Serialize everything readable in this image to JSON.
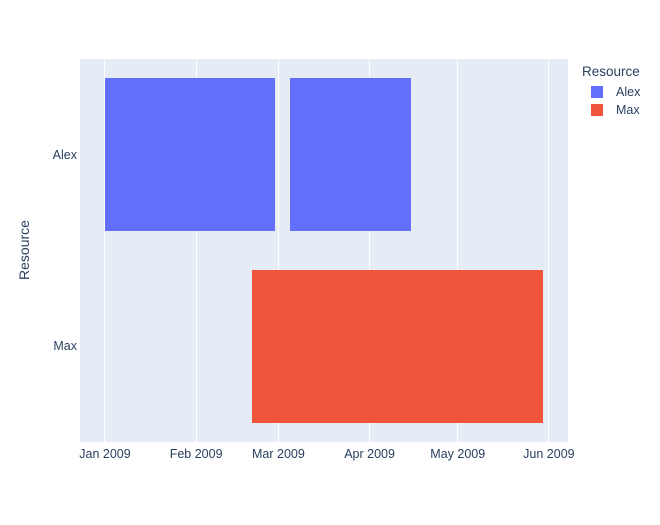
{
  "figure": {
    "paper_color": "#ffffff",
    "plot_background": "#E5ECF6",
    "grid_color": "#ffffff",
    "text_color": "#2a3f5f"
  },
  "chart_data": {
    "type": "gantt",
    "title": "",
    "xlabel": "",
    "ylabel": "Resource",
    "x_axis": {
      "range": [
        "2008-12-23T12:00:00Z",
        "2009-06-07T12:00:00Z"
      ],
      "ticks": [
        {
          "label": "Jan 2009",
          "date": "2009-01-01"
        },
        {
          "label": "Feb 2009",
          "date": "2009-02-01"
        },
        {
          "label": "Mar 2009",
          "date": "2009-03-01"
        },
        {
          "label": "Apr 2009",
          "date": "2009-04-01"
        },
        {
          "label": "May 2009",
          "date": "2009-05-01"
        },
        {
          "label": "Jun 2009",
          "date": "2009-06-01"
        }
      ],
      "grid": true
    },
    "y_axis": {
      "categories": [
        "Alex",
        "Max"
      ]
    },
    "bar_thickness": 0.8,
    "bars": [
      {
        "resource": "Alex",
        "start": "2009-01-01",
        "finish": "2009-02-28",
        "color": "#636EFA"
      },
      {
        "resource": "Alex",
        "start": "2009-03-05",
        "finish": "2009-04-15",
        "color": "#636EFA"
      },
      {
        "resource": "Max",
        "start": "2009-02-20",
        "finish": "2009-05-30",
        "color": "#EF553B"
      }
    ],
    "legend": {
      "title": "Resource",
      "position": "top-right",
      "items": [
        {
          "label": "Alex",
          "color": "#636EFA"
        },
        {
          "label": "Max",
          "color": "#EF553B"
        }
      ]
    }
  }
}
